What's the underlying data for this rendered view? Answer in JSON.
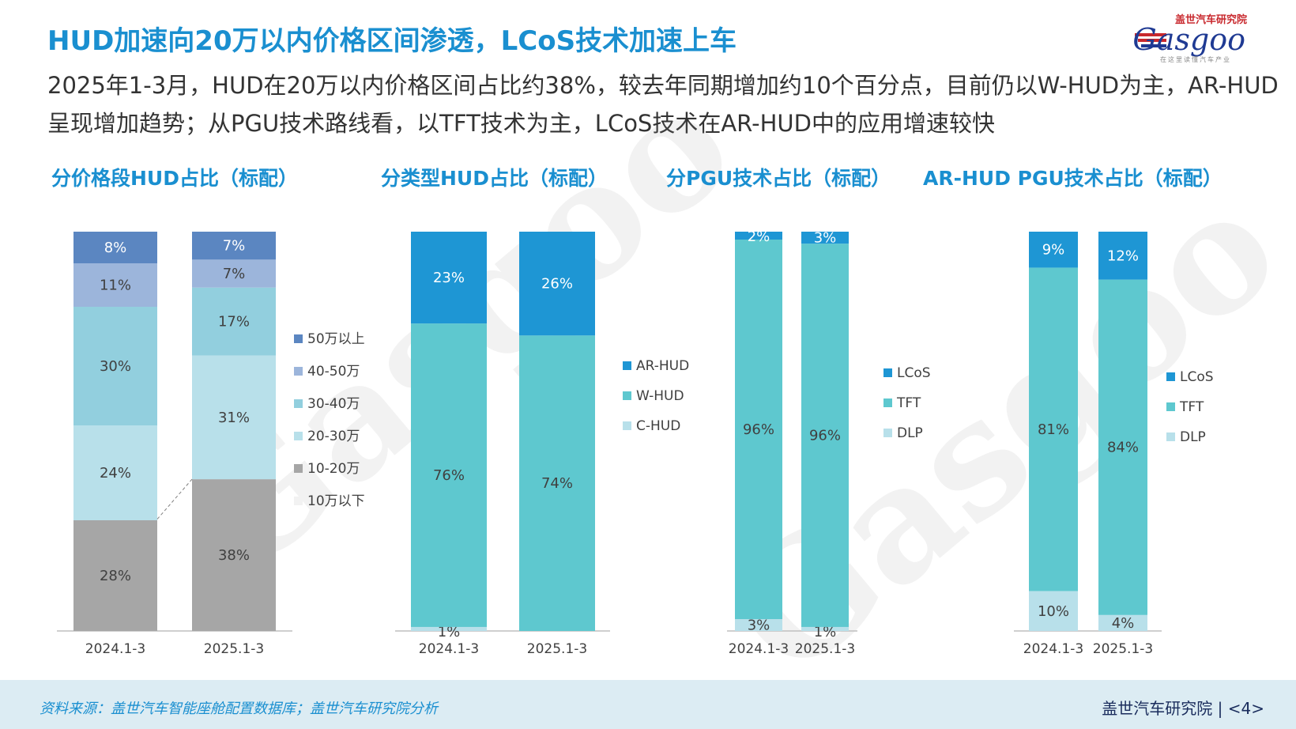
{
  "header": {
    "title": "HUD加速向20万以内价格区间渗透，LCoS技术加速上车",
    "subtitle": "2025年1-3月，HUD在20万以内价格区间占比约38%，较去年同期增加约10个百分点，目前仍以W-HUD为主，AR-HUD呈现增加趋势；从PGU技术路线看，以TFT技术为主，LCoS技术在AR-HUD中的应用增速较快"
  },
  "logo": {
    "cn": "盖世汽车研究院",
    "en": "Gasgoo",
    "tagline": "在这里读懂汽车产业"
  },
  "footer": {
    "source": "资料来源：盖世汽车智能座舱配置数据库；盖世汽车研究院分析",
    "org": "盖世汽车研究院",
    "page": "<4>"
  },
  "colors": {
    "accent": "#1a8fd0",
    "footer_bg": "#dcecf3"
  },
  "chart_data": [
    {
      "type": "stacked-bar-100",
      "title": "分价格段HUD占比（标配）",
      "categories": [
        "2024.1-3",
        "2025.1-3"
      ],
      "series": [
        {
          "name": "10万以下",
          "values": [
            0,
            0
          ],
          "color": "#f2f2f2",
          "show_label": false
        },
        {
          "name": "10-20万",
          "values": [
            28,
            38
          ],
          "color": "#a6a6a6"
        },
        {
          "name": "20-30万",
          "values": [
            24,
            31
          ],
          "color": "#b8e0ea"
        },
        {
          "name": "30-40万",
          "values": [
            30,
            17
          ],
          "color": "#92cfde"
        },
        {
          "name": "40-50万",
          "values": [
            11,
            7
          ],
          "color": "#9cb5db"
        },
        {
          "name": "50万以上",
          "values": [
            8,
            7
          ],
          "color": "#5b86c1"
        }
      ],
      "legend_order": [
        "50万以上",
        "40-50万",
        "30-40万",
        "20-30万",
        "10-20万",
        "10万以下"
      ]
    },
    {
      "type": "stacked-bar-100",
      "title": "分类型HUD占比（标配）",
      "categories": [
        "2024.1-3",
        "2025.1-3"
      ],
      "series": [
        {
          "name": "C-HUD",
          "values": [
            1,
            0
          ],
          "color": "#b8e0ea"
        },
        {
          "name": "W-HUD",
          "values": [
            76,
            74
          ],
          "color": "#5ec8cf"
        },
        {
          "name": "AR-HUD",
          "values": [
            23,
            26
          ],
          "color": "#1e96d4"
        }
      ],
      "legend_order": [
        "AR-HUD",
        "W-HUD",
        "C-HUD"
      ]
    },
    {
      "type": "stacked-bar-100",
      "title": "分PGU技术占比（标配）",
      "categories": [
        "2024.1-3",
        "2025.1-3"
      ],
      "series": [
        {
          "name": "DLP",
          "values": [
            3,
            1
          ],
          "color": "#b8e0ea"
        },
        {
          "name": "TFT",
          "values": [
            96,
            96
          ],
          "color": "#5ec8cf"
        },
        {
          "name": "LCoS",
          "values": [
            2,
            3
          ],
          "color": "#1e96d4"
        }
      ],
      "legend_order": [
        "LCoS",
        "TFT",
        "DLP"
      ]
    },
    {
      "type": "stacked-bar-100",
      "title": "AR-HUD PGU技术占比（标配）",
      "categories": [
        "2024.1-3",
        "2025.1-3"
      ],
      "series": [
        {
          "name": "DLP",
          "values": [
            10,
            4
          ],
          "color": "#b8e0ea"
        },
        {
          "name": "TFT",
          "values": [
            81,
            84
          ],
          "color": "#5ec8cf"
        },
        {
          "name": "LCoS",
          "values": [
            9,
            12
          ],
          "color": "#1e96d4"
        }
      ],
      "legend_order": [
        "LCoS",
        "TFT",
        "DLP"
      ]
    }
  ]
}
